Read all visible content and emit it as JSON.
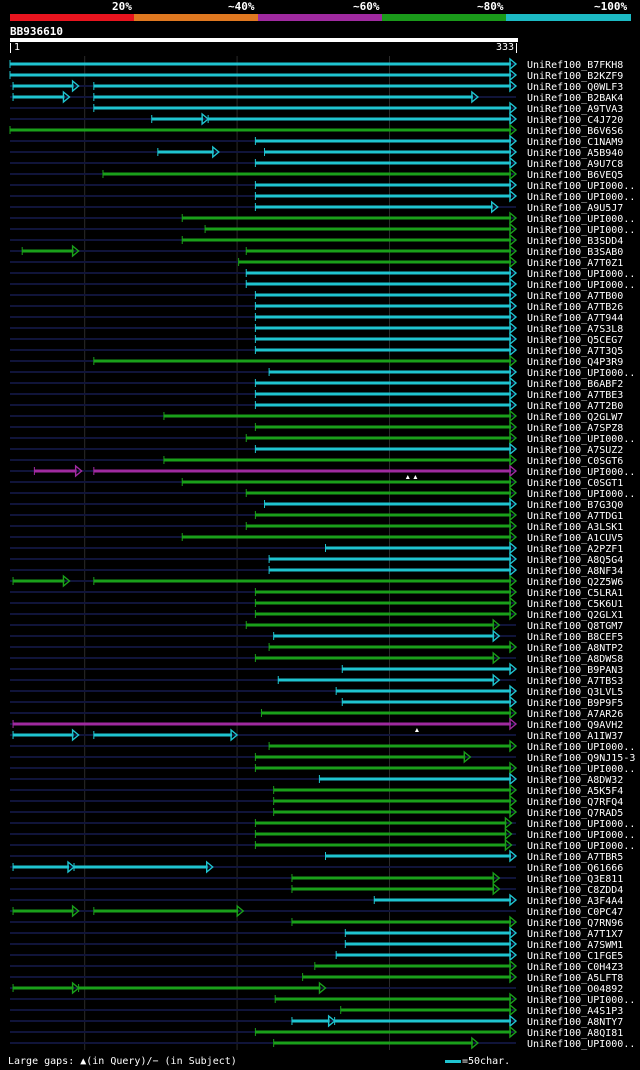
{
  "legend": {
    "labels": [
      "20%",
      "~40%",
      "~60%",
      "~80%",
      "~100%"
    ],
    "colors": [
      "#e8141e",
      "#e07820",
      "#a02aa0",
      "#1a9a1a",
      "#1cbac4"
    ]
  },
  "query": {
    "name": "BB936610",
    "start": "1",
    "end": "333"
  },
  "footer": {
    "gaps": "Large gaps: ▲(in Query)/− (in Subject)",
    "scale": "=50char."
  },
  "chart_data": {
    "type": "alignment",
    "query_length": 333,
    "identity_colors": {
      "cyan": "#1fc4d0",
      "green": "#1aa01a",
      "magenta": "#a02aa0"
    },
    "hits": [
      {
        "label": "UniRef100_B7FKH8",
        "color": "cyan",
        "segs": [
          [
            1,
            333
          ]
        ]
      },
      {
        "label": "UniRef100_B2KZF9",
        "color": "cyan",
        "segs": [
          [
            1,
            333
          ]
        ]
      },
      {
        "label": "UniRef100_Q0WLF3",
        "color": "cyan",
        "segs": [
          [
            3,
            46
          ],
          [
            56,
            333
          ]
        ]
      },
      {
        "label": "UniRef100_B2BAK4",
        "color": "cyan",
        "segs": [
          [
            3,
            40
          ],
          [
            56,
            308
          ]
        ]
      },
      {
        "label": "UniRef100_A9TVA3",
        "color": "cyan",
        "segs": [
          [
            56,
            333
          ]
        ]
      },
      {
        "label": "UniRef100_C4J720",
        "color": "cyan",
        "segs": [
          [
            94,
            131
          ],
          [
            131,
            333
          ]
        ]
      },
      {
        "label": "UniRef100_B6V6S6",
        "color": "green",
        "segs": [
          [
            1,
            333
          ]
        ]
      },
      {
        "label": "UniRef100_C1NAM9",
        "color": "cyan",
        "segs": [
          [
            162,
            333
          ]
        ]
      },
      {
        "label": "UniRef100_A5B940",
        "color": "cyan",
        "segs": [
          [
            98,
            138
          ],
          [
            168,
            333
          ]
        ]
      },
      {
        "label": "UniRef100_A9U7C8",
        "color": "cyan",
        "segs": [
          [
            162,
            333
          ]
        ]
      },
      {
        "label": "UniRef100_B6VEQ5",
        "color": "green",
        "segs": [
          [
            62,
            333
          ]
        ]
      },
      {
        "label": "UniRef100_UPI000..",
        "color": "cyan",
        "segs": [
          [
            162,
            333
          ]
        ]
      },
      {
        "label": "UniRef100_UPI000..",
        "color": "cyan",
        "segs": [
          [
            162,
            333
          ]
        ]
      },
      {
        "label": "UniRef100_A9U5J7",
        "color": "cyan",
        "segs": [
          [
            162,
            321
          ]
        ]
      },
      {
        "label": "UniRef100_UPI000..",
        "color": "green",
        "segs": [
          [
            114,
            333
          ]
        ]
      },
      {
        "label": "UniRef100_UPI000..",
        "color": "green",
        "segs": [
          [
            129,
            333
          ]
        ]
      },
      {
        "label": "UniRef100_B3SDD4",
        "color": "green",
        "segs": [
          [
            114,
            333
          ]
        ]
      },
      {
        "label": "UniRef100_B3SAB0",
        "color": "green",
        "segs": [
          [
            9,
            46
          ],
          [
            156,
            333
          ]
        ]
      },
      {
        "label": "UniRef100_A7T0Z1",
        "color": "green",
        "segs": [
          [
            151,
            333
          ]
        ]
      },
      {
        "label": "UniRef100_UPI000..",
        "color": "cyan",
        "segs": [
          [
            156,
            333
          ]
        ]
      },
      {
        "label": "UniRef100_UPI000..",
        "color": "cyan",
        "segs": [
          [
            156,
            333
          ]
        ]
      },
      {
        "label": "UniRef100_A7TB00",
        "color": "cyan",
        "segs": [
          [
            162,
            333
          ]
        ]
      },
      {
        "label": "UniRef100_A7TB26",
        "color": "cyan",
        "segs": [
          [
            162,
            333
          ]
        ]
      },
      {
        "label": "UniRef100_A7T944",
        "color": "cyan",
        "segs": [
          [
            162,
            333
          ]
        ]
      },
      {
        "label": "UniRef100_A7S3L8",
        "color": "cyan",
        "segs": [
          [
            162,
            333
          ]
        ]
      },
      {
        "label": "UniRef100_Q5CEG7",
        "color": "cyan",
        "segs": [
          [
            162,
            333
          ]
        ]
      },
      {
        "label": "UniRef100_A7T3Q5",
        "color": "cyan",
        "segs": [
          [
            162,
            333
          ]
        ]
      },
      {
        "label": "UniRef100_Q4P3R9",
        "color": "green",
        "segs": [
          [
            56,
            333
          ]
        ]
      },
      {
        "label": "UniRef100_UPI000..",
        "color": "cyan",
        "segs": [
          [
            171,
            333
          ]
        ]
      },
      {
        "label": "UniRef100_B6ABF2",
        "color": "cyan",
        "segs": [
          [
            162,
            333
          ]
        ]
      },
      {
        "label": "UniRef100_A7TBE3",
        "color": "cyan",
        "segs": [
          [
            162,
            333
          ]
        ]
      },
      {
        "label": "UniRef100_A7T2B0",
        "color": "cyan",
        "segs": [
          [
            162,
            333
          ]
        ]
      },
      {
        "label": "UniRef100_Q2GLW7",
        "color": "green",
        "segs": [
          [
            102,
            333
          ]
        ]
      },
      {
        "label": "UniRef100_A7SPZ8",
        "color": "green",
        "segs": [
          [
            162,
            333
          ]
        ]
      },
      {
        "label": "UniRef100_UPI000..",
        "color": "green",
        "segs": [
          [
            156,
            333
          ]
        ]
      },
      {
        "label": "UniRef100_A7SUZ2",
        "color": "cyan",
        "segs": [
          [
            162,
            333
          ]
        ]
      },
      {
        "label": "UniRef100_C0SGT6",
        "color": "green",
        "segs": [
          [
            102,
            333
          ]
        ]
      },
      {
        "label": "UniRef100_UPI000..",
        "color": "magenta",
        "segs": [
          [
            17,
            48
          ],
          [
            56,
            333
          ]
        ],
        "marks": [
          262,
          267
        ]
      },
      {
        "label": "UniRef100_C0SGT1",
        "color": "green",
        "segs": [
          [
            114,
            333
          ]
        ]
      },
      {
        "label": "UniRef100_UPI000..",
        "color": "green",
        "segs": [
          [
            156,
            333
          ]
        ]
      },
      {
        "label": "UniRef100_B7G3Q0",
        "color": "cyan",
        "segs": [
          [
            168,
            333
          ]
        ]
      },
      {
        "label": "UniRef100_A7TDG1",
        "color": "green",
        "segs": [
          [
            162,
            333
          ]
        ]
      },
      {
        "label": "UniRef100_A3LSK1",
        "color": "green",
        "segs": [
          [
            156,
            333
          ]
        ]
      },
      {
        "label": "UniRef100_A1CUV5",
        "color": "green",
        "segs": [
          [
            114,
            333
          ]
        ]
      },
      {
        "label": "UniRef100_A2PZF1",
        "color": "cyan",
        "segs": [
          [
            208,
            333
          ]
        ]
      },
      {
        "label": "UniRef100_A8Q5G4",
        "color": "cyan",
        "segs": [
          [
            171,
            333
          ]
        ]
      },
      {
        "label": "UniRef100_A8NF34",
        "color": "cyan",
        "segs": [
          [
            171,
            333
          ]
        ]
      },
      {
        "label": "UniRef100_Q2Z5W6",
        "color": "green",
        "segs": [
          [
            3,
            40
          ],
          [
            56,
            333
          ]
        ]
      },
      {
        "label": "UniRef100_C5LRA1",
        "color": "green",
        "segs": [
          [
            162,
            333
          ]
        ]
      },
      {
        "label": "UniRef100_C5K6U1",
        "color": "green",
        "segs": [
          [
            162,
            333
          ]
        ]
      },
      {
        "label": "UniRef100_Q2GLX1",
        "color": "green",
        "segs": [
          [
            162,
            333
          ]
        ]
      },
      {
        "label": "UniRef100_Q8TGM7",
        "color": "green",
        "segs": [
          [
            156,
            322
          ]
        ]
      },
      {
        "label": "UniRef100_B8CEF5",
        "color": "cyan",
        "segs": [
          [
            174,
            322
          ]
        ]
      },
      {
        "label": "UniRef100_A8NTP2",
        "color": "green",
        "segs": [
          [
            171,
            333
          ]
        ]
      },
      {
        "label": "UniRef100_A8DWS8",
        "color": "green",
        "segs": [
          [
            162,
            322
          ]
        ]
      },
      {
        "label": "UniRef100_B9PAN3",
        "color": "cyan",
        "segs": [
          [
            219,
            333
          ]
        ]
      },
      {
        "label": "UniRef100_A7TBS3",
        "color": "cyan",
        "segs": [
          [
            177,
            322
          ]
        ]
      },
      {
        "label": "UniRef100_Q3LVL5",
        "color": "cyan",
        "segs": [
          [
            215,
            333
          ]
        ]
      },
      {
        "label": "UniRef100_B9P9F5",
        "color": "cyan",
        "segs": [
          [
            219,
            333
          ]
        ]
      },
      {
        "label": "UniRef100_A7AR26",
        "color": "green",
        "segs": [
          [
            166,
            333
          ]
        ]
      },
      {
        "label": "UniRef100_Q9AVH2",
        "color": "magenta",
        "segs": [
          [
            3,
            333
          ]
        ],
        "marks": [
          268
        ]
      },
      {
        "label": "UniRef100_A1IW37",
        "color": "cyan",
        "segs": [
          [
            3,
            46
          ],
          [
            56,
            150
          ]
        ]
      },
      {
        "label": "UniRef100_UPI000..",
        "color": "green",
        "segs": [
          [
            171,
            333
          ]
        ]
      },
      {
        "label": "UniRef100_Q9NJ15-3",
        "color": "green",
        "segs": [
          [
            162,
            303
          ]
        ]
      },
      {
        "label": "UniRef100_UPI000..",
        "color": "green",
        "segs": [
          [
            162,
            333
          ]
        ]
      },
      {
        "label": "UniRef100_A8DW32",
        "color": "cyan",
        "segs": [
          [
            204,
            333
          ]
        ]
      },
      {
        "label": "UniRef100_A5K5F4",
        "color": "green",
        "segs": [
          [
            174,
            333
          ]
        ]
      },
      {
        "label": "UniRef100_Q7RFQ4",
        "color": "green",
        "segs": [
          [
            174,
            333
          ]
        ]
      },
      {
        "label": "UniRef100_Q7RAD5",
        "color": "green",
        "segs": [
          [
            174,
            333
          ]
        ]
      },
      {
        "label": "UniRef100_UPI000..",
        "color": "green",
        "segs": [
          [
            162,
            330
          ]
        ]
      },
      {
        "label": "UniRef100_UPI000..",
        "color": "green",
        "segs": [
          [
            162,
            330
          ]
        ]
      },
      {
        "label": "UniRef100_UPI000..",
        "color": "green",
        "segs": [
          [
            162,
            330
          ]
        ]
      },
      {
        "label": "UniRef100_A7TBR5",
        "color": "cyan",
        "segs": [
          [
            208,
            333
          ]
        ]
      },
      {
        "label": "UniRef100_Q61666",
        "color": "cyan",
        "segs": [
          [
            3,
            43
          ],
          [
            43,
            134
          ]
        ]
      },
      {
        "label": "UniRef100_Q3E811",
        "color": "green",
        "segs": [
          [
            186,
            322
          ]
        ]
      },
      {
        "label": "UniRef100_C8ZDD4",
        "color": "green",
        "segs": [
          [
            186,
            322
          ]
        ]
      },
      {
        "label": "UniRef100_A3F4A4",
        "color": "cyan",
        "segs": [
          [
            240,
            333
          ]
        ]
      },
      {
        "label": "UniRef100_C0PC47",
        "color": "green",
        "segs": [
          [
            3,
            46
          ],
          [
            56,
            154
          ]
        ]
      },
      {
        "label": "UniRef100_Q7RN96",
        "color": "green",
        "segs": [
          [
            186,
            333
          ]
        ]
      },
      {
        "label": "UniRef100_A7T1X7",
        "color": "cyan",
        "segs": [
          [
            221,
            333
          ]
        ]
      },
      {
        "label": "UniRef100_A7SWM1",
        "color": "cyan",
        "segs": [
          [
            221,
            333
          ]
        ]
      },
      {
        "label": "UniRef100_C1FGE5",
        "color": "cyan",
        "segs": [
          [
            215,
            333
          ]
        ]
      },
      {
        "label": "UniRef100_C0H4Z3",
        "color": "green",
        "segs": [
          [
            201,
            333
          ]
        ]
      },
      {
        "label": "UniRef100_A5LFT8",
        "color": "green",
        "segs": [
          [
            193,
            333
          ]
        ]
      },
      {
        "label": "UniRef100_O04892",
        "color": "green",
        "segs": [
          [
            3,
            46
          ],
          [
            46,
            208
          ]
        ]
      },
      {
        "label": "UniRef100_UPI000..",
        "color": "green",
        "segs": [
          [
            175,
            333
          ]
        ]
      },
      {
        "label": "UniRef100_A4S1P3",
        "color": "green",
        "segs": [
          [
            218,
            333
          ]
        ]
      },
      {
        "label": "UniRef100_A8NTY7",
        "color": "cyan",
        "segs": [
          [
            186,
            214
          ],
          [
            214,
            333
          ]
        ]
      },
      {
        "label": "UniRef100_A8QI81",
        "color": "green",
        "segs": [
          [
            162,
            333
          ]
        ]
      },
      {
        "label": "UniRef100_UPI000..",
        "color": "green",
        "segs": [
          [
            174,
            308
          ]
        ]
      }
    ]
  }
}
